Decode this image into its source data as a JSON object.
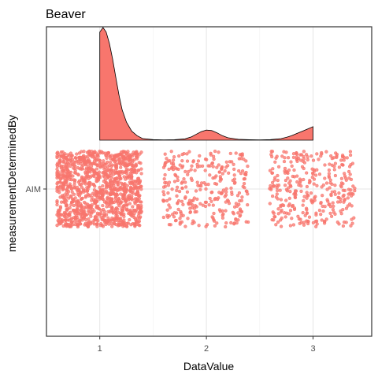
{
  "chart_data": {
    "type": "scatter",
    "subtype": "jittered-strip-with-density",
    "title": "Beaver",
    "xlabel": "DataValue",
    "ylabel": "measurementDeterminedBy",
    "x_ticks": [
      1,
      2,
      3
    ],
    "xlim": [
      0.5,
      3.55
    ],
    "y_categories": [
      "AIM"
    ],
    "grid": true,
    "legend": "none",
    "point_color": "#f8766d",
    "density_fill": "#f8766d",
    "series": [
      {
        "category": "AIM",
        "groups": [
          {
            "x": 1,
            "count": 1200,
            "jitter_x": 0.4,
            "jitter_y": 0.4
          },
          {
            "x": 2,
            "count": 300,
            "jitter_x": 0.4,
            "jitter_y": 0.4
          },
          {
            "x": 3,
            "count": 330,
            "jitter_x": 0.4,
            "jitter_y": 0.4
          }
        ]
      }
    ],
    "density": {
      "x": [
        1.0,
        1.03,
        1.06,
        1.09,
        1.12,
        1.15,
        1.18,
        1.21,
        1.25,
        1.3,
        1.35,
        1.4,
        1.5,
        1.6,
        1.7,
        1.8,
        1.86,
        1.9,
        1.95,
        2.0,
        2.05,
        2.1,
        2.15,
        2.2,
        2.3,
        2.4,
        2.5,
        2.6,
        2.7,
        2.75,
        2.8,
        2.85,
        2.9,
        2.95,
        3.0
      ],
      "y": [
        0.96,
        1.0,
        0.96,
        0.86,
        0.72,
        0.56,
        0.4,
        0.27,
        0.16,
        0.08,
        0.04,
        0.015,
        0.005,
        0.003,
        0.004,
        0.012,
        0.03,
        0.05,
        0.075,
        0.09,
        0.085,
        0.065,
        0.04,
        0.022,
        0.008,
        0.004,
        0.003,
        0.005,
        0.014,
        0.025,
        0.04,
        0.06,
        0.08,
        0.1,
        0.12
      ]
    }
  }
}
